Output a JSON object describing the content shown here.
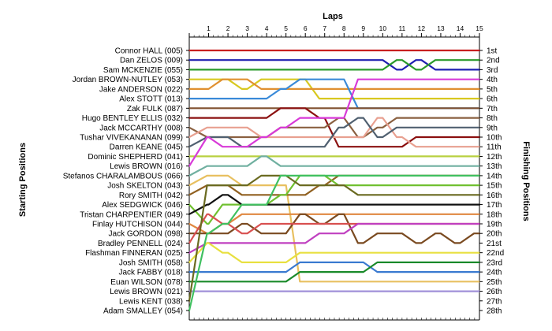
{
  "chart_data": {
    "type": "line",
    "title": "Laps",
    "ylabel_left": "Starting Positions",
    "ylabel_right": "Finishing Positions",
    "x_ticks": [
      "1",
      "2",
      "3",
      "4",
      "5",
      "6",
      "7",
      "8",
      "9",
      "10",
      "11",
      "12",
      "13",
      "14",
      "15"
    ],
    "y_range": [
      1,
      28
    ],
    "grid": false,
    "starting_labels": [
      "Connor HALL (005)",
      "Dan ZELOS (009)",
      "Sam MCKENZIE (055)",
      "Jordan BROWN-NUTLEY (053)",
      "Jake ANDERSON (022)",
      "Alex STOTT (013)",
      "Zak FULK (087)",
      "Hugo BENTLEY ELLIS (032)",
      "Jack MCCARTHY (008)",
      "Tushar VIVEKANANAN (099)",
      "Darren KEANE (045)",
      "Dominic SHEPHERD (041)",
      "Lewis BROWN (016)",
      "Stefanos CHARALAMBOUS (066)",
      "Josh SKELTON (043)",
      "Rory SMITH (042)",
      "Alex SEDGWICK (046)",
      "Tristan CHARPENTIER (049)",
      "Finlay HUTCHISON (044)",
      "Jack GORDON (098)",
      "Bradley PENNELL (024)",
      "Flashman FINNERAN (025)",
      "Josh SMITH (058)",
      "Jack FABBY (018)",
      "Euan WILSON (078)",
      "Lewis BROWN (021)",
      "Lewis KENT (038)",
      "Adam SMALLEY (054)"
    ],
    "finishing_labels": [
      "1st",
      "2nd",
      "3rd",
      "4th",
      "5th",
      "6th",
      "7th",
      "8th",
      "9th",
      "10th",
      "11th",
      "12th",
      "13th",
      "14th",
      "15th",
      "16th",
      "17th",
      "18th",
      "19th",
      "20th",
      "21st",
      "22nd",
      "23rd",
      "24th",
      "25th",
      "26th",
      "27th",
      "28th"
    ],
    "series": [
      {
        "start": 1,
        "color": "#c82020",
        "positions": [
          1,
          1,
          1,
          1,
          1,
          1,
          1,
          1,
          1,
          1,
          1,
          1,
          1,
          1,
          1
        ]
      },
      {
        "start": 2,
        "color": "#1f1fb0",
        "positions": [
          2,
          2,
          2,
          2,
          2,
          2,
          2,
          2,
          2,
          2,
          3,
          2,
          3,
          3,
          3
        ]
      },
      {
        "start": 3,
        "color": "#2a9a2a",
        "positions": [
          3,
          3,
          3,
          3,
          3,
          3,
          3,
          3,
          3,
          3,
          2,
          3,
          2,
          2,
          2
        ]
      },
      {
        "start": 4,
        "color": "#d8c820",
        "positions": [
          4,
          4,
          5,
          4,
          4,
          4,
          6,
          6,
          6,
          6,
          6,
          6,
          6,
          6,
          6
        ]
      },
      {
        "start": 5,
        "color": "#e09030",
        "positions": [
          5,
          4,
          4,
          5,
          5,
          5,
          5,
          5,
          5,
          5,
          5,
          5,
          5,
          5,
          5
        ]
      },
      {
        "start": 6,
        "color": "#3a8ad8",
        "positions": [
          6,
          6,
          6,
          6,
          5,
          4,
          4,
          4,
          7,
          7,
          7,
          7,
          7,
          7,
          7
        ]
      },
      {
        "start": 7,
        "color": "#805030",
        "positions": [
          7,
          7,
          7,
          7,
          7,
          7,
          7,
          7,
          7,
          7,
          7,
          7,
          7,
          7,
          7
        ]
      },
      {
        "start": 8,
        "color": "#8b1010",
        "positions": [
          8,
          8,
          8,
          8,
          7,
          7,
          8,
          11,
          11,
          11,
          11,
          10,
          10,
          10,
          10
        ]
      },
      {
        "start": 9,
        "color": "#8a6040",
        "positions": [
          10,
          10,
          10,
          10,
          9,
          9,
          9,
          8,
          10,
          9,
          8,
          8,
          8,
          8,
          8
        ]
      },
      {
        "start": 10,
        "color": "#e8a090",
        "positions": [
          9,
          9,
          9,
          10,
          10,
          10,
          10,
          10,
          10,
          8,
          10,
          11,
          11,
          11,
          11
        ]
      },
      {
        "start": 11,
        "color": "#506070",
        "positions": [
          10,
          10,
          11,
          11,
          11,
          11,
          11,
          9,
          8,
          10,
          9,
          9,
          9,
          9,
          9
        ]
      },
      {
        "start": 12,
        "color": "#b8d040",
        "positions": [
          12,
          12,
          12,
          12,
          12,
          12,
          12,
          12,
          12,
          12,
          12,
          12,
          12,
          12,
          12
        ]
      },
      {
        "start": 13,
        "color": "#d83ad8",
        "positions": [
          10,
          11,
          11,
          10,
          9,
          8,
          8,
          8,
          4,
          4,
          4,
          4,
          4,
          4,
          4
        ]
      },
      {
        "start": 14,
        "color": "#70b0a0",
        "positions": [
          13,
          13,
          13,
          12,
          13,
          13,
          13,
          13,
          13,
          13,
          13,
          13,
          13,
          13,
          13
        ]
      },
      {
        "start": 15,
        "color": "#e8c060",
        "positions": [
          14,
          14,
          15,
          15,
          15,
          25,
          25,
          25,
          25,
          25,
          25,
          25,
          25,
          25,
          25
        ]
      },
      {
        "start": 16,
        "color": "#906020",
        "positions": [
          15,
          15,
          16,
          16,
          16,
          16,
          15,
          14,
          14,
          14,
          14,
          14,
          14,
          14,
          14
        ]
      },
      {
        "start": 17,
        "color": "#70c030",
        "positions": [
          19,
          17,
          17,
          17,
          16,
          14,
          14,
          15,
          15,
          15,
          15,
          15,
          15,
          15,
          15
        ]
      },
      {
        "start": 18,
        "color": "#101010",
        "positions": [
          17,
          16,
          17,
          17,
          17,
          17,
          17,
          17,
          17,
          17,
          17,
          17,
          17,
          17,
          17
        ]
      },
      {
        "start": 19,
        "color": "#e08840",
        "positions": [
          20,
          19,
          18,
          18,
          18,
          18,
          18,
          18,
          18,
          18,
          18,
          18,
          18,
          18,
          18
        ]
      },
      {
        "start": 20,
        "color": "#7a4a20",
        "positions": [
          20,
          20,
          19,
          20,
          20,
          18,
          19,
          18,
          21,
          20,
          20,
          21,
          20,
          21,
          20
        ]
      },
      {
        "start": 21,
        "color": "#d85050",
        "positions": [
          18,
          19,
          20,
          19,
          19,
          19,
          19,
          19,
          19,
          19,
          19,
          19,
          19,
          19,
          19
        ]
      },
      {
        "start": 22,
        "color": "#c040c0",
        "positions": [
          21,
          21,
          21,
          21,
          21,
          21,
          20,
          20,
          19,
          19,
          19,
          19,
          19,
          19,
          19
        ]
      },
      {
        "start": 23,
        "color": "#e8e040",
        "positions": [
          21,
          22,
          23,
          23,
          23,
          22,
          22,
          22,
          22,
          22,
          22,
          22,
          22,
          22,
          22
        ]
      },
      {
        "start": 24,
        "color": "#3a7ad0",
        "positions": [
          24,
          24,
          24,
          24,
          24,
          23,
          23,
          23,
          23,
          24,
          24,
          24,
          24,
          24,
          24
        ]
      },
      {
        "start": 25,
        "color": "#1a8a2a",
        "positions": [
          25,
          25,
          25,
          25,
          25,
          24,
          24,
          24,
          24,
          23,
          23,
          23,
          23,
          23,
          23
        ]
      },
      {
        "start": 26,
        "color": "#a090d8",
        "positions": [
          26,
          26,
          26,
          26,
          26,
          26,
          26,
          26,
          26,
          26,
          26,
          26,
          26,
          26,
          26
        ]
      },
      {
        "start": 27,
        "color": "#6a6a20",
        "positions": [
          15,
          15,
          15,
          14,
          14,
          15,
          15,
          15,
          16,
          16,
          16,
          16,
          16,
          16,
          16
        ]
      },
      {
        "start": 28,
        "color": "#40c060",
        "positions": [
          20,
          19,
          17,
          17,
          14,
          14,
          14,
          14,
          14,
          14,
          14,
          14,
          14,
          14,
          14
        ]
      }
    ]
  }
}
